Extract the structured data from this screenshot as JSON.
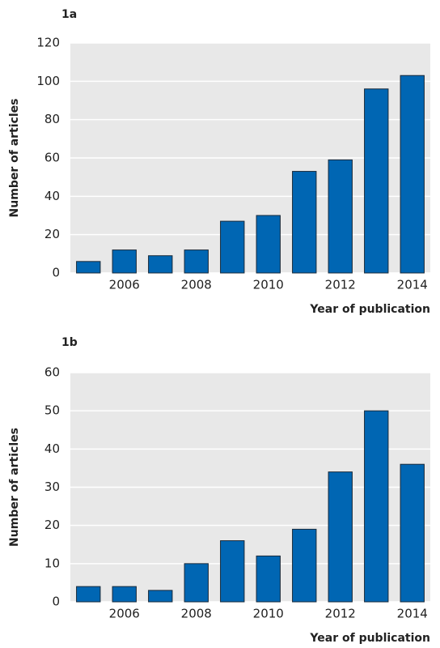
{
  "chart_data": [
    {
      "type": "bar",
      "title": "1a",
      "x_label": "Year of publication",
      "y_label": "Number of articles",
      "categories": [
        null,
        "2006",
        null,
        "2008",
        null,
        "2010",
        null,
        "2012",
        null,
        "2014"
      ],
      "values": [
        6,
        12,
        9,
        12,
        27,
        30,
        53,
        59,
        96,
        103
      ],
      "color": "#0066b3",
      "ylim": [
        0,
        120
      ],
      "yticks": [
        0,
        20,
        40,
        60,
        80,
        100,
        120
      ],
      "grid": true
    },
    {
      "type": "bar",
      "title": "1b",
      "x_label": "Year of publication",
      "y_label": "Number of articles",
      "categories": [
        null,
        "2006",
        null,
        "2008",
        null,
        "2010",
        null,
        "2012",
        null,
        "2014"
      ],
      "values": [
        4,
        4,
        3,
        10,
        16,
        12,
        19,
        34,
        50,
        36
      ],
      "color": "#0066b3",
      "ylim": [
        0,
        60
      ],
      "yticks": [
        0,
        10,
        20,
        30,
        40,
        50,
        60
      ],
      "grid": true
    }
  ]
}
